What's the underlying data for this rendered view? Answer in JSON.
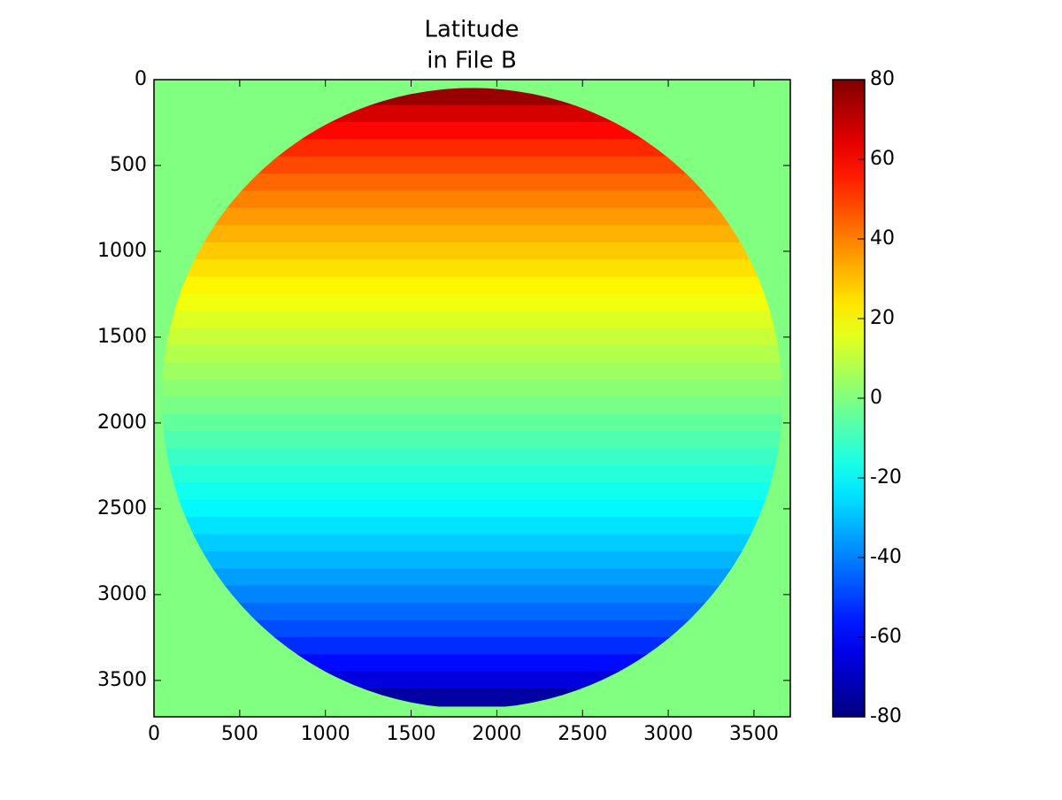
{
  "chart_data": {
    "type": "image",
    "title": [
      "Latitude",
      "in File B"
    ],
    "colormap": "jet",
    "xlim": [
      0,
      3712
    ],
    "ylim": [
      3712,
      0
    ],
    "xticks": [
      0,
      500,
      1000,
      1500,
      2000,
      2500,
      3000,
      3500
    ],
    "yticks": [
      0,
      500,
      1000,
      1500,
      2000,
      2500,
      3000,
      3500
    ],
    "clim": [
      -80,
      80
    ],
    "cticks": [
      -80,
      -60,
      -40,
      -20,
      0,
      20,
      40,
      60,
      80
    ],
    "background_value": 0,
    "disk_center": [
      1856,
      1856
    ],
    "disk_radius": 1810,
    "rows": [
      100,
      200,
      300,
      400,
      500,
      600,
      700,
      800,
      900,
      1000,
      1100,
      1200,
      1300,
      1400,
      1500,
      1600,
      1700,
      1800,
      1900,
      2000,
      2100,
      2200,
      2300,
      2400,
      2500,
      2600,
      2700,
      2800,
      2900,
      3000,
      3100,
      3200,
      3300,
      3400,
      3500,
      3600
    ],
    "values": [
      76.0,
      66.2,
      59.3,
      53.6,
      48.5,
      43.9,
      39.7,
      35.7,
      31.9,
      28.2,
      24.7,
      21.2,
      17.9,
      14.6,
      11.3,
      8.1,
      4.9,
      1.8,
      -1.4,
      -4.6,
      -7.7,
      -11.0,
      -14.2,
      -17.5,
      -20.8,
      -24.3,
      -27.8,
      -31.4,
      -35.2,
      -39.2,
      -43.4,
      -48.0,
      -52.9,
      -58.5,
      -65.3,
      -74.5
    ]
  }
}
